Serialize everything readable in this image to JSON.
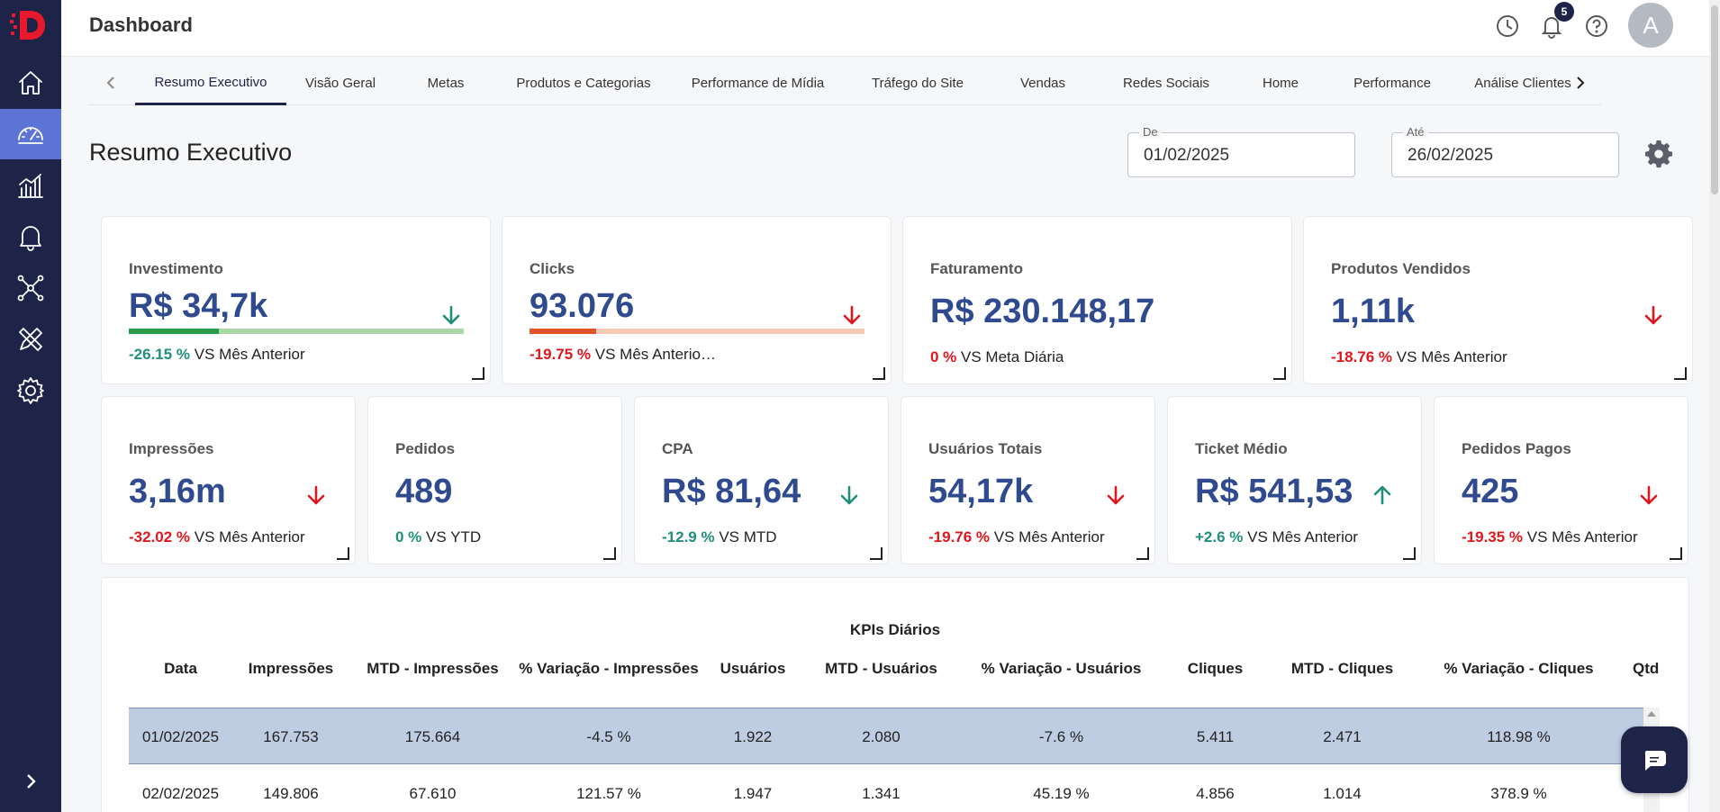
{
  "header": {
    "title": "Dashboard",
    "notification_count": "5",
    "avatar_initial": "A"
  },
  "tabs": [
    "Resumo Executivo",
    "Visão Geral",
    "Metas",
    "Produtos e Categorias",
    "Performance de Mídia",
    "Tráfego do Site",
    "Vendas",
    "Redes Sociais",
    "Home",
    "Performance",
    "Análise Clientes"
  ],
  "page": {
    "title": "Resumo Executivo",
    "date_from_label": "De",
    "date_from": "01/02/2025",
    "date_to_label": "Até",
    "date_to": "26/02/2025"
  },
  "cards_row1": [
    {
      "label": "Investimento",
      "value": "R$ 34,7k",
      "pct": "-26.15 %",
      "pct_tone": "pos",
      "comparison": "VS Mês Anterior",
      "trend": "down",
      "arrow_color": "teal",
      "progress": 0.27,
      "progress_fill": "#2a9d4a",
      "progress_track": "#a8d8a8"
    },
    {
      "label": "Clicks",
      "value": "93.076",
      "pct": "-19.75 %",
      "pct_tone": "neg",
      "comparison": "VS Mês Anterio…",
      "trend": "down",
      "arrow_color": "red",
      "progress": 0.2,
      "progress_fill": "#e0542d",
      "progress_track": "#f6c9b4"
    },
    {
      "label": "Faturamento",
      "value": "R$ 230.148,17",
      "pct": "0 %",
      "pct_tone": "neg",
      "comparison": "VS Meta Diária"
    },
    {
      "label": "Produtos Vendidos",
      "value": "1,11k",
      "pct": "-18.76 %",
      "pct_tone": "neg",
      "comparison": "VS Mês Anterior",
      "trend": "down",
      "arrow_color": "red"
    }
  ],
  "cards_row2": [
    {
      "label": "Impressões",
      "value": "3,16m",
      "pct": "-32.02 %",
      "pct_tone": "neg",
      "comparison": "VS Mês Anterior",
      "trend": "down",
      "arrow_color": "red"
    },
    {
      "label": "Pedidos",
      "value": "489",
      "pct": "0 %",
      "pct_tone": "pos",
      "comparison": "VS YTD"
    },
    {
      "label": "CPA",
      "value": "R$ 81,64",
      "pct": "-12.9 %",
      "pct_tone": "pos",
      "comparison": "VS MTD",
      "trend": "down",
      "arrow_color": "teal"
    },
    {
      "label": "Usuários Totais",
      "value": "54,17k",
      "pct": "-19.76 %",
      "pct_tone": "neg",
      "comparison": "VS Mês Anterior",
      "trend": "down",
      "arrow_color": "red"
    },
    {
      "label": "Ticket Médio",
      "value": "R$ 541,53",
      "pct": "+2.6 %",
      "pct_tone": "pos",
      "comparison": "VS Mês Anterior",
      "trend": "up",
      "arrow_color": "teal"
    },
    {
      "label": "Pedidos Pagos",
      "value": "425",
      "pct": "-19.35 %",
      "pct_tone": "neg",
      "comparison": "VS Mês Anterior",
      "trend": "down",
      "arrow_color": "red"
    }
  ],
  "kpi_table": {
    "title": "KPIs Diários",
    "columns": [
      "Data",
      "Impressões",
      "MTD - Impressões",
      "% Variação - Impressões",
      "Usuários",
      "MTD - Usuários",
      "% Variação - Usuários",
      "Cliques",
      "MTD - Cliques",
      "% Variação - Cliques",
      "Qtd d"
    ],
    "rows": [
      [
        "01/02/2025",
        "167.753",
        "175.664",
        "-4.5 %",
        "1.922",
        "2.080",
        "-7.6 %",
        "5.411",
        "2.471",
        "118.98 %"
      ],
      [
        "02/02/2025",
        "149.806",
        "67.610",
        "121.57 %",
        "1.947",
        "1.341",
        "45.19 %",
        "4.856",
        "1.014",
        "378.9 %"
      ]
    ]
  },
  "colors": {
    "sidebar": "#1d2447",
    "active_nav": "#5b74d6",
    "value_blue": "#2f4a8e",
    "negative": "#e0161d",
    "positive": "#1f8f7c"
  },
  "sidebar_icons": [
    "home-icon",
    "gauge-icon",
    "chart-icon",
    "bell-icon",
    "network-icon",
    "design-tools-icon",
    "settings-icon"
  ]
}
